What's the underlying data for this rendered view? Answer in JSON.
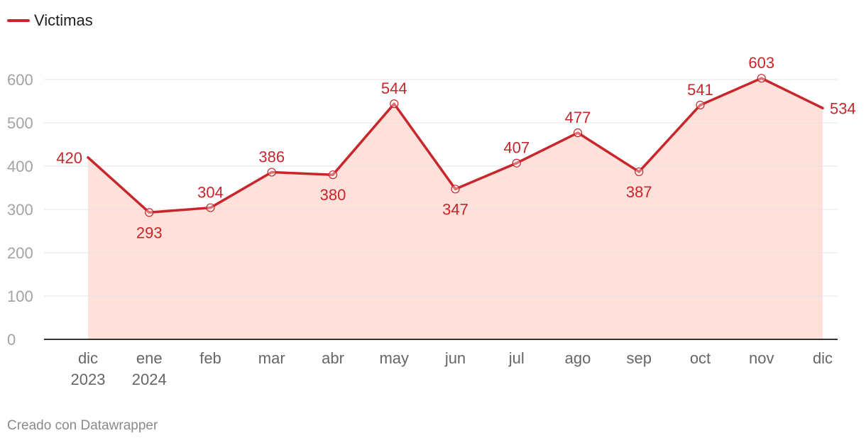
{
  "legend": {
    "label": "Victimas",
    "color": "#c8262b"
  },
  "footer": {
    "credit": "Creado con Datawrapper"
  },
  "colors": {
    "line": "#c8262b",
    "area": "#fde1da",
    "grid": "#e3e3e3",
    "axis": "#333333"
  },
  "chart_data": {
    "type": "area",
    "categories": [
      [
        "dic",
        "2023"
      ],
      [
        "ene",
        "2024"
      ],
      [
        "feb"
      ],
      [
        "mar"
      ],
      [
        "abr"
      ],
      [
        "may"
      ],
      [
        "jun"
      ],
      [
        "jul"
      ],
      [
        "ago"
      ],
      [
        "sep"
      ],
      [
        "oct"
      ],
      [
        "nov"
      ],
      [
        "dic"
      ]
    ],
    "series": [
      {
        "name": "Victimas",
        "values": [
          420,
          293,
          304,
          386,
          380,
          544,
          347,
          407,
          477,
          387,
          541,
          603,
          534
        ]
      }
    ],
    "yticks": [
      0,
      100,
      200,
      300,
      400,
      500,
      600
    ],
    "ylim": [
      0,
      660
    ],
    "grid": true,
    "legend_position": "top-left",
    "data_labels": true
  }
}
